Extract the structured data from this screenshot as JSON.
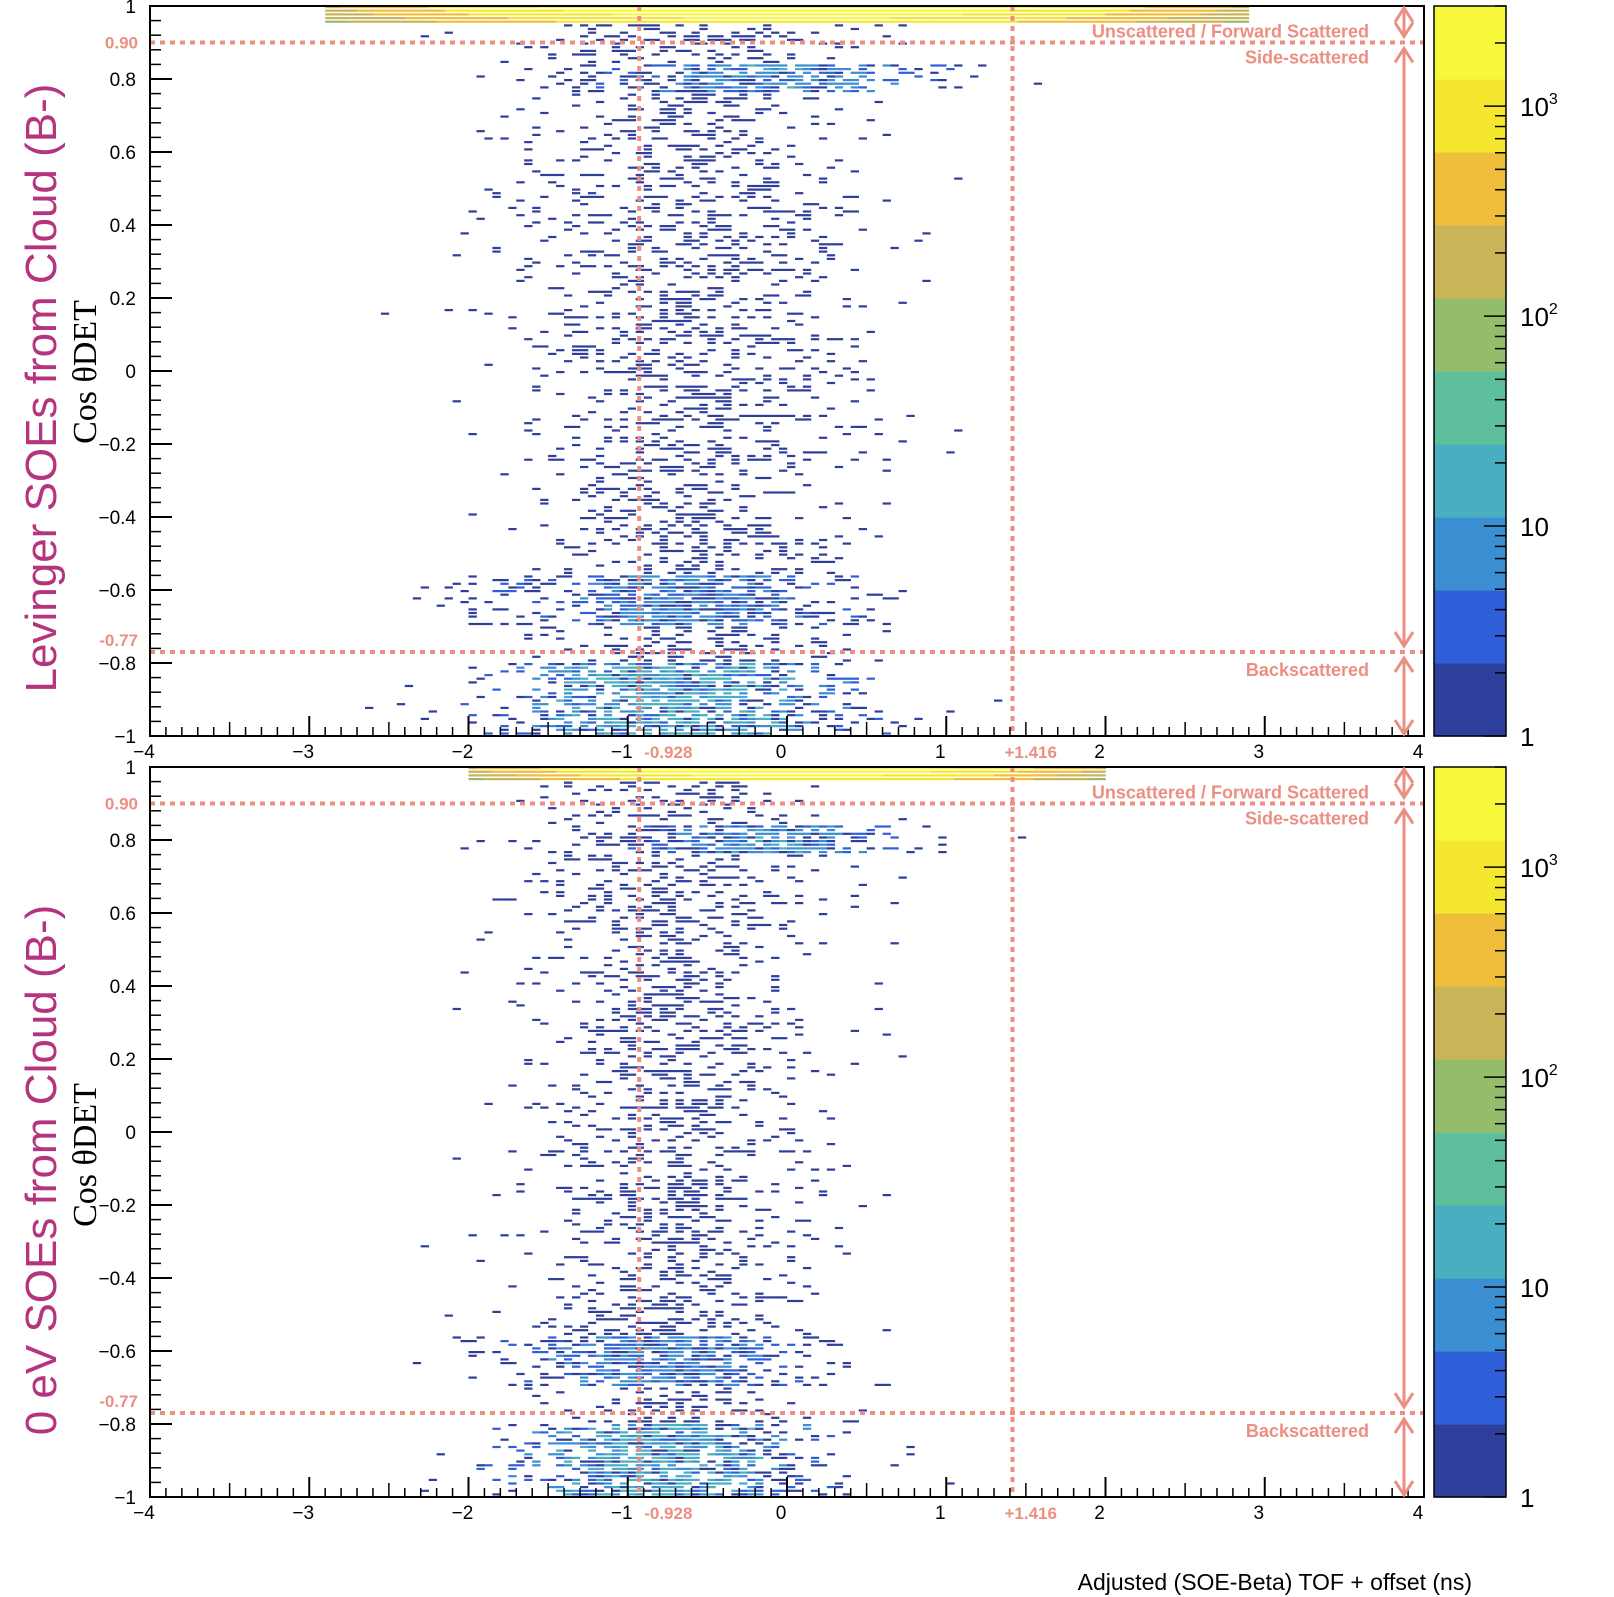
{
  "figure": {
    "xlabel": "Adjusted (SOE-Beta) TOF + offset (ns)",
    "colors": {
      "annotation": "#ec8f82",
      "panel_title": "#b5347e",
      "colormap": [
        "#2e3e9b",
        "#2f5fd8",
        "#3b8ed2",
        "#4aaec1",
        "#5ebf9d",
        "#93bd6b",
        "#c9b457",
        "#efbe3a",
        "#f5e62e",
        "#f8f83a"
      ]
    }
  },
  "chart_data": [
    {
      "type": "heatmap",
      "title": "Levinger SOEs from Cloud (B-)",
      "xlabel": "",
      "ylabel": "Cos θDET",
      "xlim": [
        -4,
        4
      ],
      "ylim": [
        -1,
        1
      ],
      "x_ticks": [
        "−4",
        "−3",
        "−2",
        "−1",
        "0",
        "1",
        "2",
        "3",
        "4"
      ],
      "y_ticks": [
        "−1",
        "−0.8",
        "−0.6",
        "−0.4",
        "−0.2",
        "0",
        "0.2",
        "0.4",
        "0.6",
        "0.8",
        "1"
      ],
      "colorbar": {
        "scale": "log",
        "range": [
          1,
          3000
        ],
        "tick_labels": [
          "1",
          "10",
          "10",
          "10"
        ],
        "tick_superscripts": [
          "",
          "",
          "2",
          "3"
        ]
      },
      "cut_lines": {
        "x": [
          -0.928,
          1.416
        ],
        "y": [
          0.9,
          -0.77
        ]
      },
      "cut_labels": {
        "x_left": "-0.928",
        "x_right": "+1.416",
        "y_top": "0.90",
        "y_bottom": "-0.77"
      },
      "regions": [
        "Unscattered / Forward Scattered",
        "Side-scattered",
        "Backscattered"
      ],
      "density_model": {
        "cosine_bands": [
          {
            "y_range": [
              0.95,
              1.0
            ],
            "x_center": 0.0,
            "x_sigma": 1.3,
            "peak_counts": 3000
          },
          {
            "y_range": [
              0.76,
              0.84
            ],
            "x_center": -0.1,
            "x_sigma": 0.55,
            "peak_counts": 12
          },
          {
            "y_range": [
              -0.7,
              -0.56
            ],
            "x_center": -0.7,
            "x_sigma": 0.6,
            "peak_counts": 10
          },
          {
            "y_range": [
              -1.0,
              -0.8
            ],
            "x_center": -0.7,
            "x_sigma": 0.6,
            "peak_counts": 25
          }
        ],
        "background_x_center": -0.6,
        "background_x_sigma": 0.55
      }
    },
    {
      "type": "heatmap",
      "title": "0 eV SOEs from Cloud (B-)",
      "xlabel": "Adjusted (SOE-Beta) TOF + offset (ns)",
      "ylabel": "Cos θDET",
      "xlim": [
        -4,
        4
      ],
      "ylim": [
        -1,
        1
      ],
      "x_ticks": [
        "−4",
        "−3",
        "−2",
        "−1",
        "0",
        "1",
        "2",
        "3",
        "4"
      ],
      "y_ticks": [
        "−1",
        "−0.8",
        "−0.6",
        "−0.4",
        "−0.2",
        "0",
        "0.2",
        "0.4",
        "0.6",
        "0.8",
        "1"
      ],
      "colorbar": {
        "scale": "log",
        "range": [
          1,
          3000
        ],
        "tick_labels": [
          "1",
          "10",
          "10",
          "10"
        ],
        "tick_superscripts": [
          "",
          "",
          "2",
          "3"
        ]
      },
      "cut_lines": {
        "x": [
          -0.928,
          1.416
        ],
        "y": [
          0.9,
          -0.77
        ]
      },
      "cut_labels": {
        "x_left": "-0.928",
        "x_right": "+1.416",
        "y_top": "0.90",
        "y_bottom": "-0.77"
      },
      "regions": [
        "Unscattered / Forward Scattered",
        "Side-scattered",
        "Backscattered"
      ],
      "density_model": {
        "cosine_bands": [
          {
            "y_range": [
              0.96,
              1.0
            ],
            "x_center": 0.0,
            "x_sigma": 0.9,
            "peak_counts": 3000
          },
          {
            "y_range": [
              0.76,
              0.84
            ],
            "x_center": -0.1,
            "x_sigma": 0.5,
            "peak_counts": 12
          },
          {
            "y_range": [
              -0.7,
              -0.56
            ],
            "x_center": -0.8,
            "x_sigma": 0.5,
            "peak_counts": 10
          },
          {
            "y_range": [
              -1.0,
              -0.8
            ],
            "x_center": -0.8,
            "x_sigma": 0.5,
            "peak_counts": 25
          }
        ],
        "background_x_center": -0.7,
        "background_x_sigma": 0.45
      }
    }
  ]
}
